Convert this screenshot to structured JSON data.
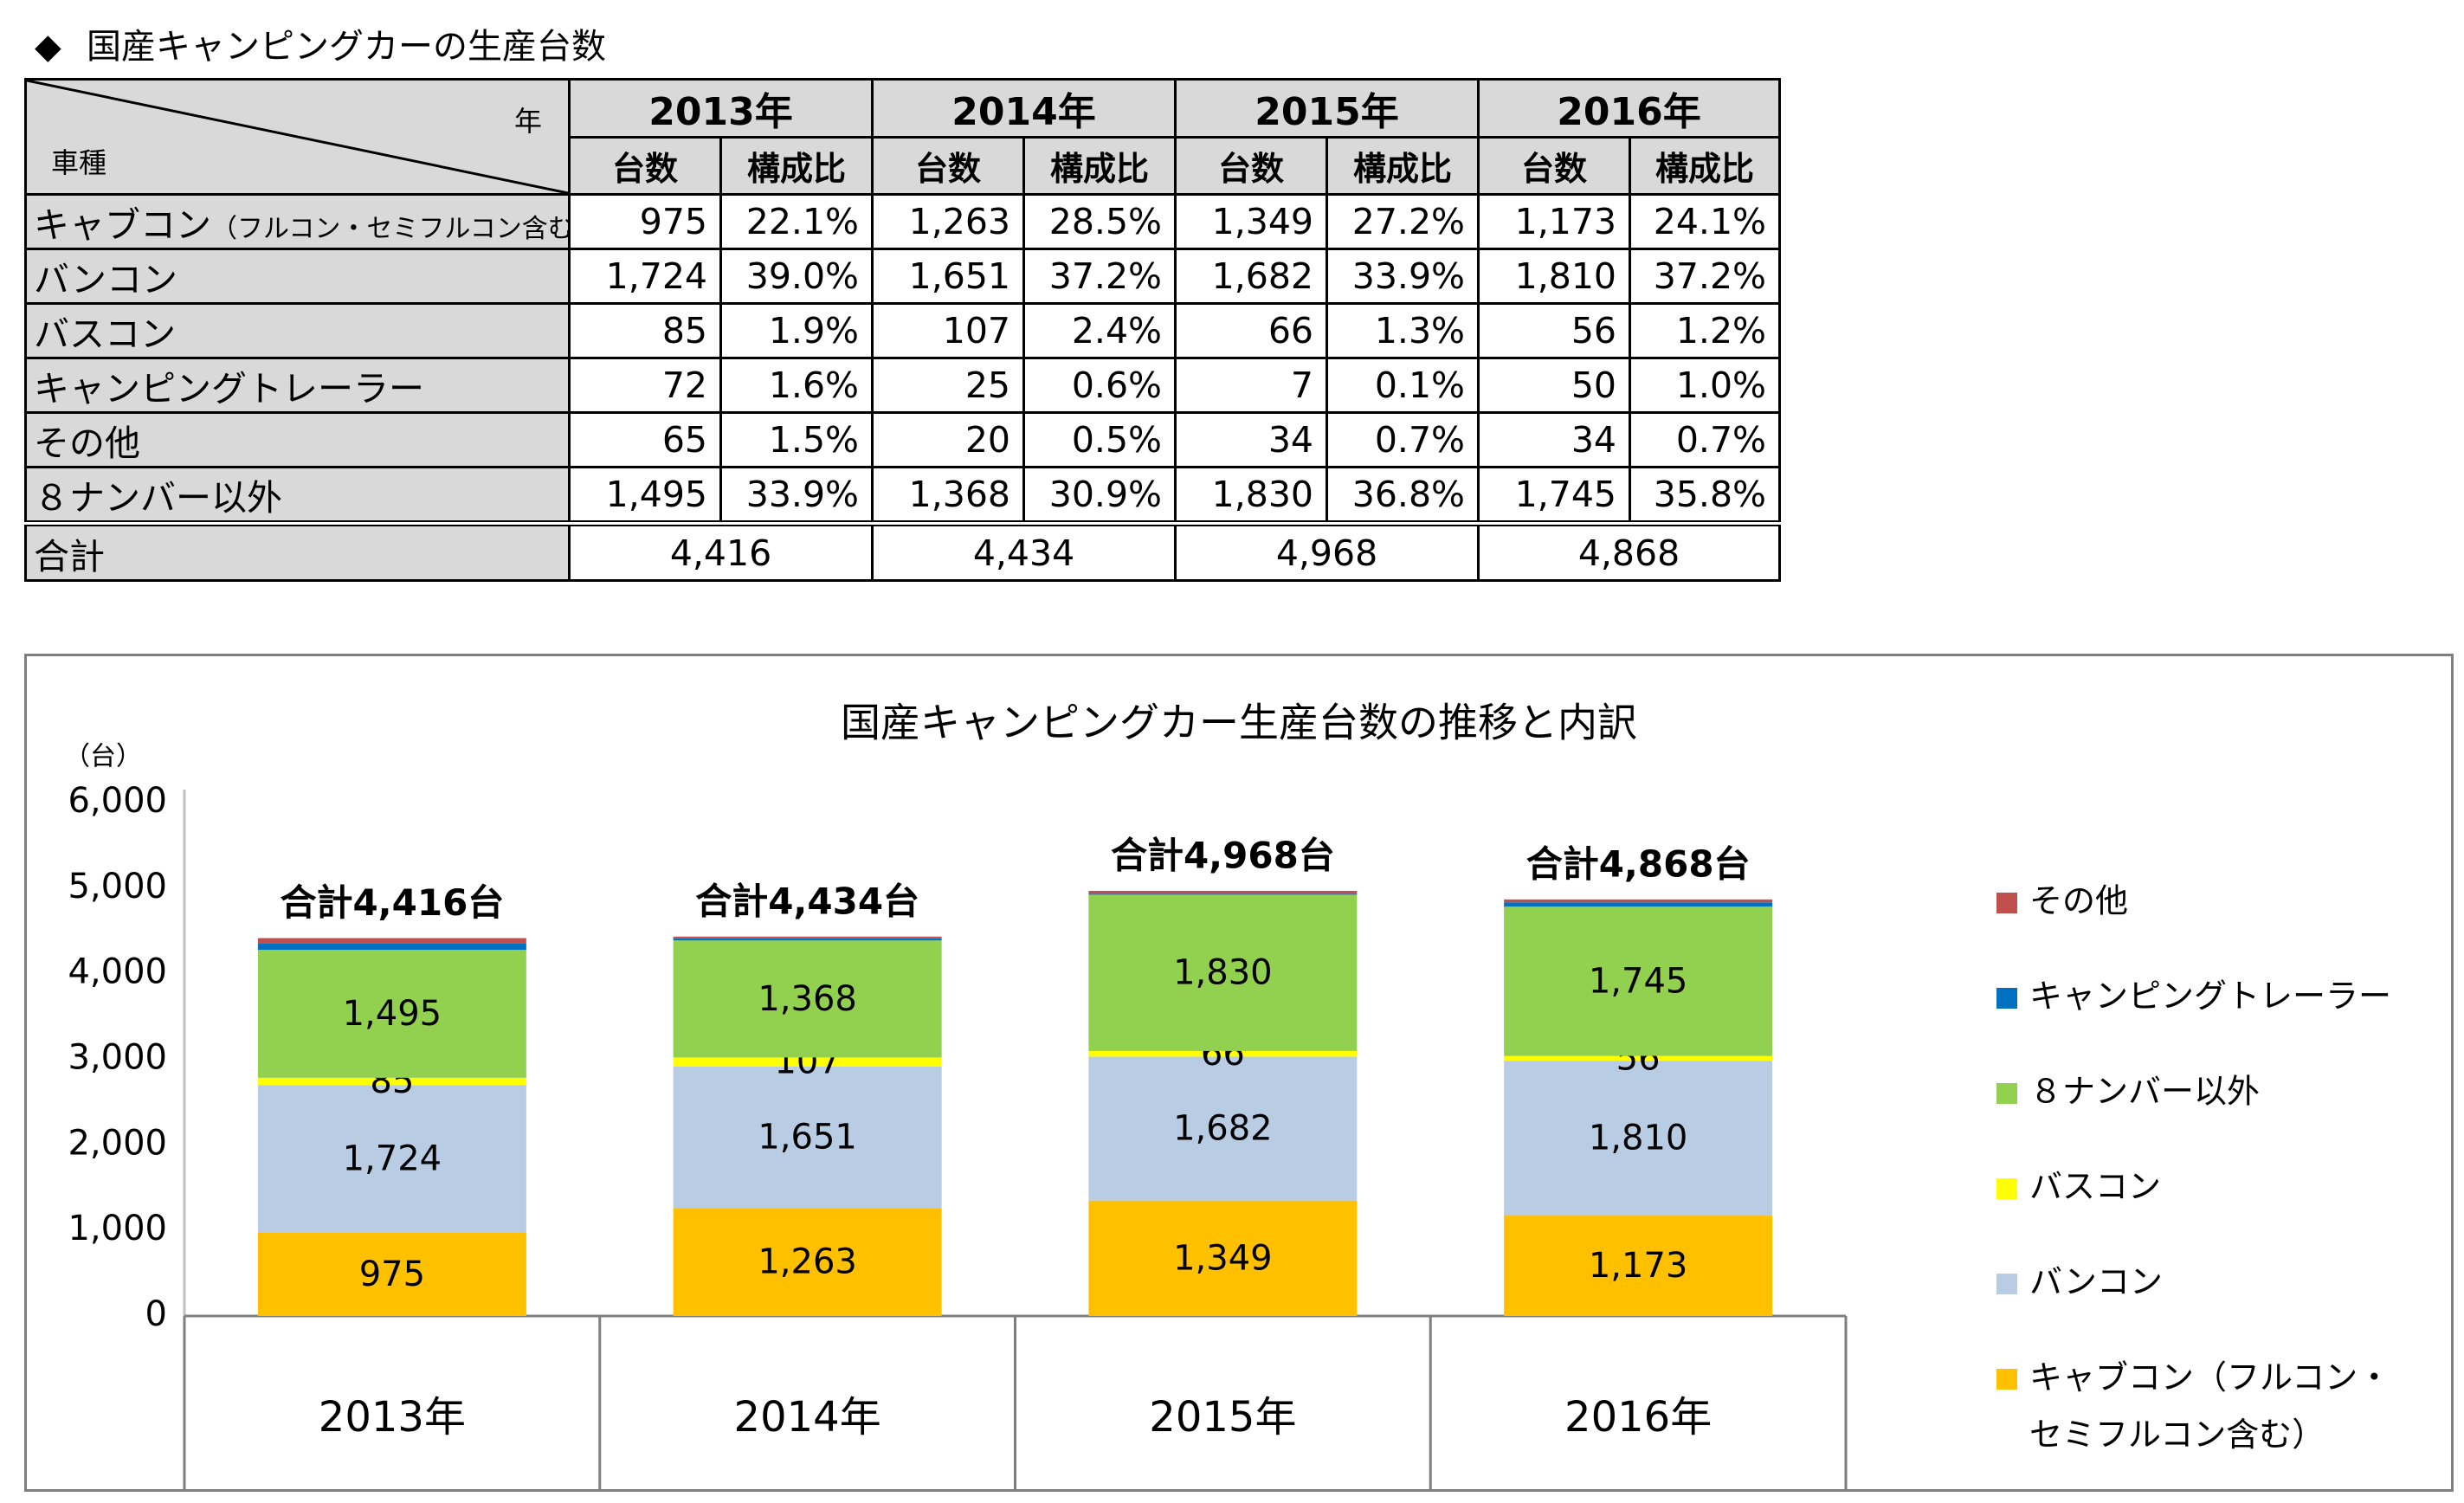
{
  "heading": {
    "bullet": "◆",
    "text": "国産キャンピングカーの生産台数"
  },
  "table": {
    "corner_year": "年",
    "corner_type": "車種",
    "years": [
      "2013年",
      "2014年",
      "2015年",
      "2016年"
    ],
    "sub_units": "台数",
    "sub_ratio": "構成比",
    "rows": [
      {
        "label": "キャブコン",
        "label_small": "（フルコン・セミフルコン含む）",
        "cells": [
          "975",
          "22.1%",
          "1,263",
          "28.5%",
          "1,349",
          "27.2%",
          "1,173",
          "24.1%"
        ]
      },
      {
        "label": "バンコン",
        "label_small": "",
        "cells": [
          "1,724",
          "39.0%",
          "1,651",
          "37.2%",
          "1,682",
          "33.9%",
          "1,810",
          "37.2%"
        ]
      },
      {
        "label": "バスコン",
        "label_small": "",
        "cells": [
          "85",
          "1.9%",
          "107",
          "2.4%",
          "66",
          "1.3%",
          "56",
          "1.2%"
        ]
      },
      {
        "label": "キャンピングトレーラー",
        "label_small": "",
        "cells": [
          "72",
          "1.6%",
          "25",
          "0.6%",
          "7",
          "0.1%",
          "50",
          "1.0%"
        ]
      },
      {
        "label": "その他",
        "label_small": "",
        "cells": [
          "65",
          "1.5%",
          "20",
          "0.5%",
          "34",
          "0.7%",
          "34",
          "0.7%"
        ]
      },
      {
        "label": "８ナンバー以外",
        "label_small": "",
        "cells": [
          "1,495",
          "33.9%",
          "1,368",
          "30.9%",
          "1,830",
          "36.8%",
          "1,745",
          "35.8%"
        ]
      }
    ],
    "total_label": "合計",
    "totals": [
      "4,416",
      "4,434",
      "4,968",
      "4,868"
    ]
  },
  "chart_data": {
    "type": "bar",
    "stacked": true,
    "title": "国産キャンピングカー生産台数の推移と内訳",
    "ylabel": "（台）",
    "ylim": [
      0,
      6000
    ],
    "yticks": [
      "0",
      "1,000",
      "2,000",
      "3,000",
      "4,000",
      "5,000",
      "6,000"
    ],
    "ytick_values": [
      0,
      1000,
      2000,
      3000,
      4000,
      5000,
      6000
    ],
    "categories": [
      "2013年",
      "2014年",
      "2015年",
      "2016年"
    ],
    "totals_labels": [
      "合計4,416台",
      "合計4,434台",
      "合計4,968台",
      "合計4,868台"
    ],
    "series": [
      {
        "name": "キャブコン（フルコン・セミフルコン含む）",
        "color": "#ffc000",
        "values": [
          975,
          1263,
          1349,
          1173
        ],
        "labels": [
          "975",
          "1,263",
          "1,349",
          "1,173"
        ]
      },
      {
        "name": "バンコン",
        "color": "#b8cce4",
        "values": [
          1724,
          1651,
          1682,
          1810
        ],
        "labels": [
          "1,724",
          "1,651",
          "1,682",
          "1,810"
        ]
      },
      {
        "name": "バスコン",
        "color": "#ffff00",
        "values": [
          85,
          107,
          66,
          56
        ],
        "labels": [
          "85",
          "107",
          "66",
          "56"
        ]
      },
      {
        "name": "８ナンバー以外",
        "color": "#92d050",
        "values": [
          1495,
          1368,
          1830,
          1745
        ],
        "labels": [
          "1,495",
          "1,368",
          "1,830",
          "1,745"
        ]
      },
      {
        "name": "キャンピングトレーラー",
        "color": "#0070c0",
        "values": [
          72,
          25,
          7,
          50
        ],
        "labels": []
      },
      {
        "name": "その他",
        "color": "#c0504d",
        "values": [
          65,
          20,
          34,
          34
        ],
        "labels": []
      }
    ],
    "legend_order": [
      "その他",
      "キャンピングトレーラー",
      "８ナンバー以外",
      "バスコン",
      "バンコン",
      "キャブコン（フルコン・セミフルコン含む）"
    ],
    "legend_placement": "right",
    "grid": false
  }
}
